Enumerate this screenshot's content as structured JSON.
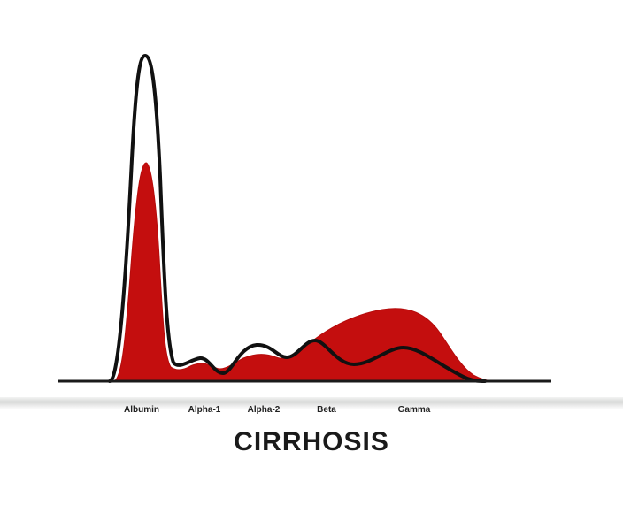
{
  "title": "CIRRHOSIS",
  "categories": [
    "Albumin",
    "Alpha-1",
    "Alpha-2",
    "Beta",
    "Gamma"
  ],
  "colors": {
    "filled_curve": "#c40e0e",
    "outline_curve": "#111111",
    "baseline": "#1a1a1a"
  }
}
